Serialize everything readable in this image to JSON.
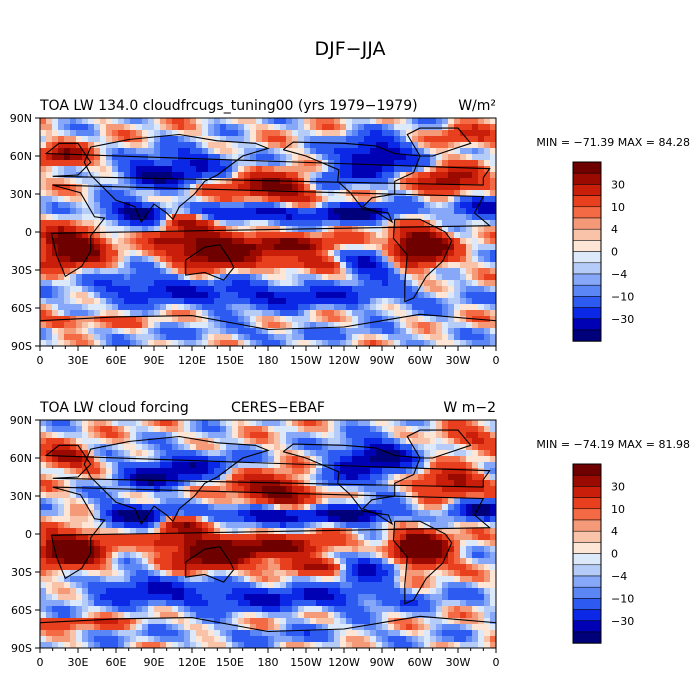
{
  "page_title": "DJF−JJA",
  "colors": {
    "scale": [
      "#00007a",
      "#0000b4",
      "#0a28e6",
      "#2d5af0",
      "#5a87f5",
      "#87a7f8",
      "#b5ccf8",
      "#dce9fb",
      "#fde6d6",
      "#f8c3a8",
      "#f59a78",
      "#f36a44",
      "#e8401e",
      "#c81e0a",
      "#9a0a00",
      "#6e0000"
    ],
    "land_outline": "#000000"
  },
  "chart_data": [
    {
      "type": "heatmap",
      "title_left": "TOA LW 134.0 cloudfrcugs_tuning00 (yrs 1979−1979)",
      "title_right": "W/m²",
      "title_center": "",
      "stats": "MIN = −71.39 MAX =  84.28",
      "x_ticks": [
        "0",
        "30E",
        "60E",
        "90E",
        "120E",
        "150E",
        "180",
        "150W",
        "120W",
        "90W",
        "60W",
        "30W",
        "0"
      ],
      "y_ticks": [
        "90N",
        "60N",
        "30N",
        "0",
        "30S",
        "60S",
        "90S"
      ],
      "xlim": [
        0,
        360
      ],
      "ylim": [
        -90,
        90
      ],
      "colorbar_labels": [
        "30",
        "10",
        "4",
        "0",
        "−4",
        "−10",
        "−30"
      ],
      "field_min": -71.39,
      "field_max": 84.28
    },
    {
      "type": "heatmap",
      "title_left": "TOA LW cloud forcing",
      "title_center": "CERES−EBAF",
      "title_right": "W m−2",
      "stats": "MIN = −74.19 MAX =  81.98",
      "x_ticks": [
        "0",
        "30E",
        "60E",
        "90E",
        "120E",
        "150E",
        "180",
        "150W",
        "120W",
        "90W",
        "60W",
        "30W",
        "0"
      ],
      "y_ticks": [
        "90N",
        "60N",
        "30N",
        "0",
        "30S",
        "60S",
        "90S"
      ],
      "xlim": [
        0,
        360
      ],
      "ylim": [
        -90,
        90
      ],
      "colorbar_labels": [
        "30",
        "10",
        "4",
        "0",
        "−4",
        "−10",
        "−30"
      ],
      "field_min": -74.19,
      "field_max": 81.98
    }
  ]
}
